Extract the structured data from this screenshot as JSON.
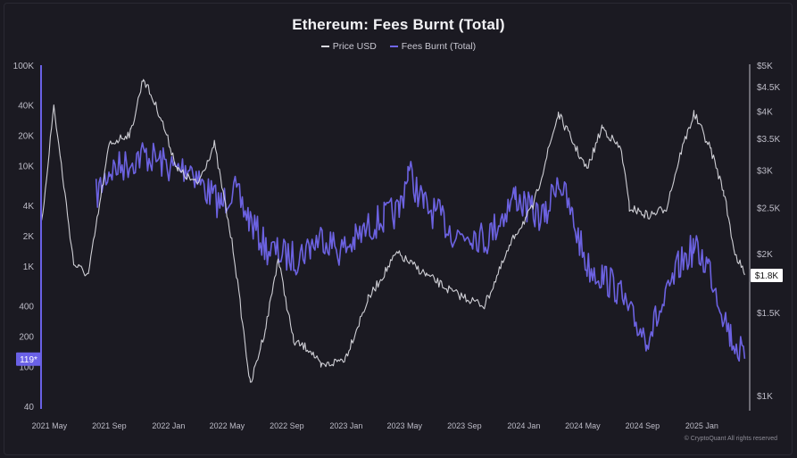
{
  "chart_data": {
    "type": "line",
    "title": "Ethereum: Fees Burnt (Total)",
    "x_ticks": [
      "2021 May",
      "2021 Sep",
      "2022 Jan",
      "2022 May",
      "2022 Sep",
      "2023 Jan",
      "2023 May",
      "2023 Sep",
      "2024 Jan",
      "2024 May",
      "2024 Sep",
      "2025 Jan"
    ],
    "y_left": {
      "scale": "log",
      "range": [
        40,
        100000
      ],
      "ticks": [
        "100K",
        "40K",
        "20K",
        "10K",
        "4K",
        "2K",
        "1K",
        "400",
        "200",
        "100",
        "40"
      ],
      "tick_values": [
        100000,
        40000,
        20000,
        10000,
        4000,
        2000,
        1000,
        400,
        200,
        100,
        40
      ]
    },
    "y_right": {
      "scale": "log",
      "range": [
        950,
        5000
      ],
      "ticks": [
        "$5K",
        "$4.5K",
        "$4K",
        "$3.5K",
        "$3K",
        "$2.5K",
        "$2K",
        "$1.5K",
        "$1K"
      ],
      "tick_values": [
        5000,
        4500,
        4000,
        3500,
        3000,
        2500,
        2000,
        1500,
        1000
      ]
    },
    "current_labels": {
      "price": "$1.8K",
      "fees": "119*"
    },
    "legend_position": "top-center",
    "grid": false,
    "series": [
      {
        "name": "Price USD",
        "axis": "right",
        "color": "#d9d9df",
        "x": [
          "2021-04-15",
          "2021-05-10",
          "2021-06-20",
          "2021-07-20",
          "2021-09-01",
          "2021-10-15",
          "2021-11-10",
          "2021-12-15",
          "2022-01-20",
          "2022-03-01",
          "2022-04-05",
          "2022-05-15",
          "2022-06-18",
          "2022-07-20",
          "2022-08-14",
          "2022-09-15",
          "2022-10-20",
          "2022-11-10",
          "2022-12-30",
          "2023-02-15",
          "2023-04-15",
          "2023-06-15",
          "2023-08-10",
          "2023-10-12",
          "2023-12-15",
          "2024-01-20",
          "2024-03-12",
          "2024-05-10",
          "2024-06-10",
          "2024-07-20",
          "2024-08-05",
          "2024-09-15",
          "2024-10-20",
          "2024-11-20",
          "2024-12-16",
          "2025-01-20",
          "2025-02-15",
          "2025-03-10",
          "2025-03-30"
        ],
        "y": [
          2300,
          4100,
          1900,
          1800,
          3400,
          3600,
          4700,
          3900,
          3000,
          2800,
          3400,
          2000,
          1050,
          1400,
          1950,
          1300,
          1250,
          1150,
          1200,
          1600,
          2000,
          1800,
          1650,
          1550,
          2200,
          2500,
          3950,
          3000,
          3700,
          3300,
          2500,
          2400,
          2500,
          3300,
          3950,
          3300,
          2700,
          2000,
          1800
        ]
      },
      {
        "name": "Fees Burnt (Total)",
        "axis": "left",
        "color": "#7166ec",
        "x": [
          "2021-08-05",
          "2021-09-01",
          "2021-10-01",
          "2021-11-10",
          "2021-12-15",
          "2022-01-15",
          "2022-02-15",
          "2022-03-15",
          "2022-04-20",
          "2022-05-12",
          "2022-06-15",
          "2022-07-20",
          "2022-08-20",
          "2022-09-20",
          "2022-10-20",
          "2022-11-15",
          "2022-12-20",
          "2023-01-20",
          "2023-02-20",
          "2023-03-20",
          "2023-04-20",
          "2023-05-08",
          "2023-06-10",
          "2023-07-15",
          "2023-08-15",
          "2023-09-15",
          "2023-10-15",
          "2023-11-15",
          "2023-12-15",
          "2024-01-15",
          "2024-02-15",
          "2024-03-10",
          "2024-04-10",
          "2024-05-10",
          "2024-06-10",
          "2024-07-10",
          "2024-08-10",
          "2024-09-10",
          "2024-10-15",
          "2024-11-15",
          "2024-12-15",
          "2025-01-15",
          "2025-02-10",
          "2025-03-01",
          "2025-03-30"
        ],
        "y": [
          5000,
          9000,
          10000,
          13000,
          11000,
          9000,
          10000,
          6000,
          4000,
          6000,
          3000,
          1500,
          1300,
          1200,
          1600,
          2000,
          1400,
          1800,
          2500,
          3000,
          3500,
          9000,
          4000,
          3000,
          2000,
          2200,
          1800,
          3000,
          5000,
          3500,
          3000,
          8000,
          3000,
          1000,
          800,
          600,
          300,
          200,
          400,
          1000,
          1500,
          1000,
          400,
          200,
          119
        ]
      }
    ]
  },
  "footer": {
    "credit": "© CryptoQuant All rights reserved"
  }
}
